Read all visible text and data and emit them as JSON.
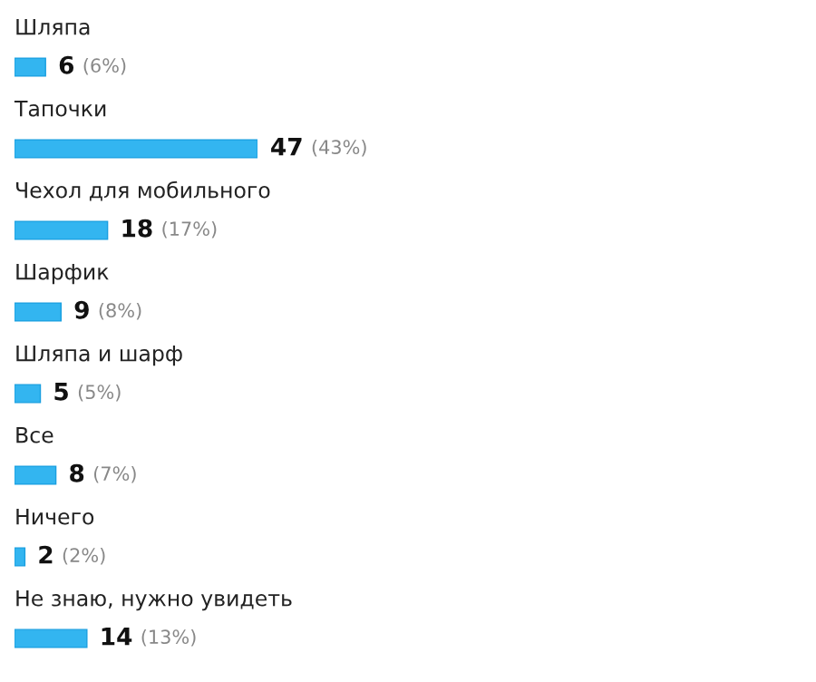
{
  "chart_data": {
    "type": "bar",
    "orientation": "horizontal",
    "categories": [
      "Шляпа",
      "Тапочки",
      "Чехол для мобильного",
      "Шарфик",
      "Шляпа и шарф",
      "Все",
      "Ничего",
      "Не знаю, нужно увидеть"
    ],
    "values": [
      6,
      47,
      18,
      9,
      5,
      8,
      2,
      14
    ],
    "value_labels": [
      "6 (6%)",
      "47 (43%)",
      "18 (17%)",
      "9 (8%)",
      "5 (5%)",
      "8 (7%)",
      "2 (2%)",
      "14 (13%)"
    ],
    "color": "#33b5f0"
  }
}
